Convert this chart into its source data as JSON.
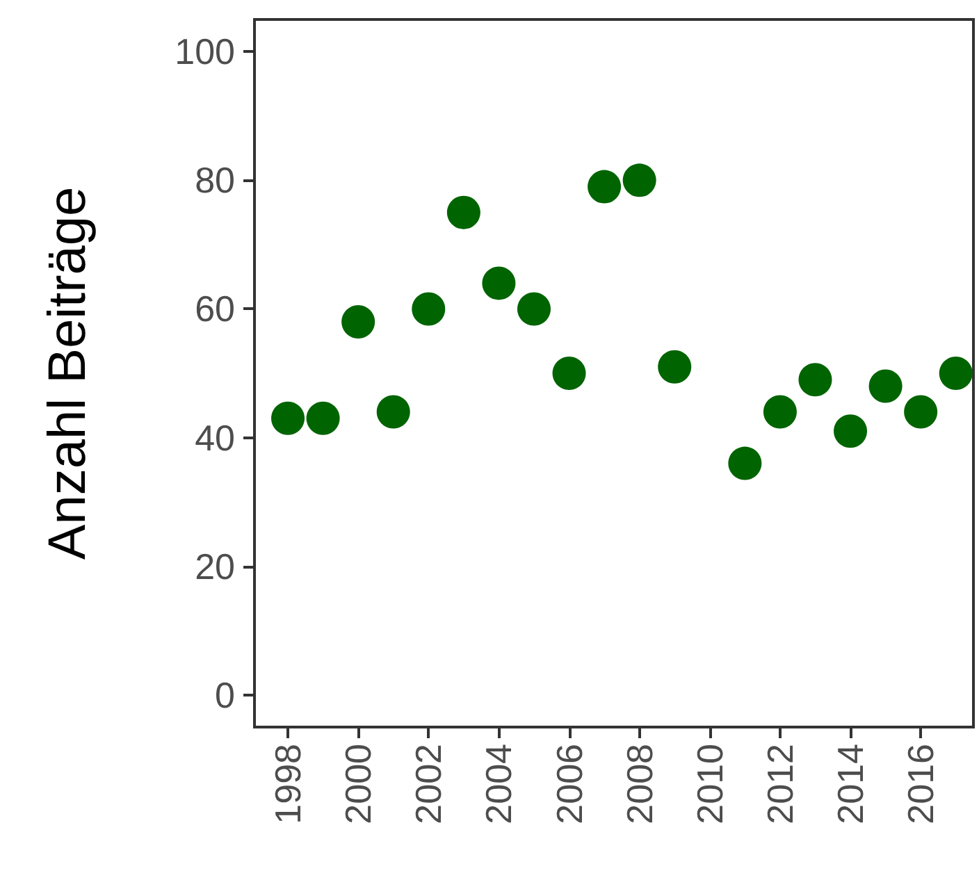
{
  "chart_data": {
    "type": "scatter",
    "ylabel": "Anzahl Beiträge",
    "x": [
      1998,
      1999,
      2000,
      2001,
      2002,
      2003,
      2004,
      2005,
      2006,
      2007,
      2008,
      2009,
      2011,
      2012,
      2013,
      2014,
      2015,
      2016,
      2017
    ],
    "values": [
      43,
      43,
      58,
      44,
      60,
      75,
      64,
      60,
      50,
      79,
      80,
      51,
      36,
      44,
      49,
      41,
      48,
      44,
      50
    ],
    "color": "#006400",
    "marker": "circle",
    "xlim": [
      1997.05,
      2017.5
    ],
    "xticks": [
      1998,
      2000,
      2002,
      2004,
      2006,
      2008,
      2010,
      2012,
      2014,
      2016
    ],
    "ylim": [
      -5,
      105
    ],
    "yticks": [
      0,
      20,
      40,
      60,
      80,
      100
    ],
    "grid": false
  }
}
